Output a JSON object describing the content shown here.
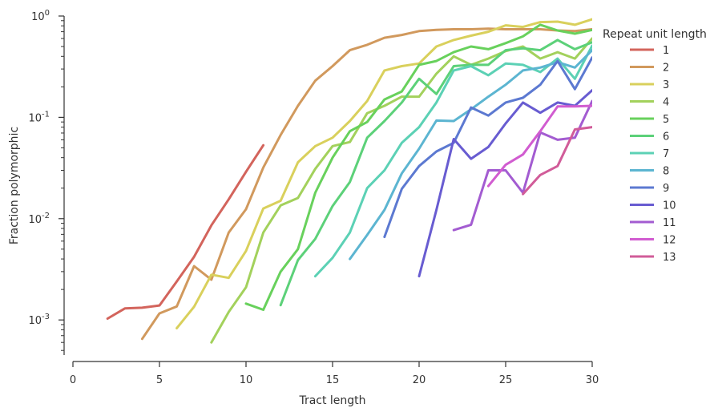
{
  "chart_data": {
    "type": "line",
    "xlabel": "Tract length",
    "ylabel": "Fraction polymorphic",
    "xlim": [
      0,
      30
    ],
    "ylim": [
      0.00045,
      1.0
    ],
    "yscale": "log",
    "x_ticks": [
      0,
      5,
      10,
      15,
      20,
      25,
      30
    ],
    "y_ticks": [
      {
        "value": 0.001,
        "base": "10",
        "exp": "-3"
      },
      {
        "value": 0.01,
        "base": "10",
        "exp": "-2"
      },
      {
        "value": 0.1,
        "base": "10",
        "exp": "-1"
      },
      {
        "value": 1,
        "base": "10",
        "exp": "0"
      }
    ],
    "legend": {
      "title": "Repeat unit length",
      "placement": "right"
    },
    "grid": false,
    "series": [
      {
        "name": "1",
        "color": "#d3645c",
        "points": [
          [
            2,
            0.00103
          ],
          [
            3,
            0.0013
          ],
          [
            4,
            0.00132
          ],
          [
            5,
            0.00139
          ],
          [
            6,
            0.0024
          ],
          [
            7,
            0.0042
          ],
          [
            8,
            0.0086
          ],
          [
            9,
            0.0155
          ],
          [
            10,
            0.029
          ],
          [
            11,
            0.053
          ]
        ]
      },
      {
        "name": "2",
        "color": "#d1995d",
        "points": [
          [
            4,
            0.00065
          ],
          [
            5,
            0.00116
          ],
          [
            6,
            0.00136
          ],
          [
            7,
            0.0034
          ],
          [
            8,
            0.0025
          ],
          [
            9,
            0.0073
          ],
          [
            10,
            0.0124
          ],
          [
            11,
            0.032
          ],
          [
            12,
            0.067
          ],
          [
            13,
            0.13
          ],
          [
            14,
            0.23
          ],
          [
            15,
            0.32
          ],
          [
            16,
            0.46
          ],
          [
            17,
            0.52
          ],
          [
            18,
            0.61
          ],
          [
            19,
            0.65
          ],
          [
            20,
            0.71
          ],
          [
            21,
            0.73
          ],
          [
            22,
            0.74
          ],
          [
            23,
            0.74
          ],
          [
            24,
            0.75
          ],
          [
            25,
            0.74
          ],
          [
            26,
            0.74
          ],
          [
            27,
            0.74
          ],
          [
            28,
            0.72
          ],
          [
            29,
            0.71
          ],
          [
            30,
            0.74
          ]
        ]
      },
      {
        "name": "3",
        "color": "#d9d05c",
        "points": [
          [
            6,
            0.00083
          ],
          [
            7,
            0.00135
          ],
          [
            8,
            0.0028
          ],
          [
            9,
            0.0026
          ],
          [
            10,
            0.0048
          ],
          [
            11,
            0.0126
          ],
          [
            12,
            0.015
          ],
          [
            13,
            0.036
          ],
          [
            14,
            0.052
          ],
          [
            15,
            0.063
          ],
          [
            16,
            0.092
          ],
          [
            17,
            0.145
          ],
          [
            18,
            0.29
          ],
          [
            19,
            0.32
          ],
          [
            20,
            0.34
          ],
          [
            21,
            0.5
          ],
          [
            22,
            0.58
          ],
          [
            23,
            0.64
          ],
          [
            24,
            0.7
          ],
          [
            25,
            0.81
          ],
          [
            26,
            0.78
          ],
          [
            27,
            0.87
          ],
          [
            28,
            0.88
          ],
          [
            29,
            0.82
          ],
          [
            30,
            0.93
          ]
        ]
      },
      {
        "name": "4",
        "color": "#a3d15c",
        "points": [
          [
            8,
            0.0006
          ],
          [
            9,
            0.0012
          ],
          [
            10,
            0.0021
          ],
          [
            11,
            0.0073
          ],
          [
            12,
            0.0135
          ],
          [
            13,
            0.016
          ],
          [
            14,
            0.031
          ],
          [
            15,
            0.052
          ],
          [
            16,
            0.057
          ],
          [
            17,
            0.11
          ],
          [
            18,
            0.13
          ],
          [
            19,
            0.16
          ],
          [
            20,
            0.16
          ],
          [
            21,
            0.27
          ],
          [
            22,
            0.4
          ],
          [
            23,
            0.33
          ],
          [
            24,
            0.38
          ],
          [
            25,
            0.45
          ],
          [
            26,
            0.5
          ],
          [
            27,
            0.38
          ],
          [
            28,
            0.44
          ],
          [
            29,
            0.38
          ],
          [
            30,
            0.6
          ]
        ]
      },
      {
        "name": "5",
        "color": "#68d15c",
        "points": [
          [
            10,
            0.00145
          ],
          [
            11,
            0.00126
          ],
          [
            12,
            0.003
          ],
          [
            13,
            0.005
          ],
          [
            14,
            0.018
          ],
          [
            15,
            0.04
          ],
          [
            16,
            0.073
          ],
          [
            17,
            0.09
          ],
          [
            18,
            0.15
          ],
          [
            19,
            0.18
          ],
          [
            20,
            0.33
          ],
          [
            21,
            0.36
          ],
          [
            22,
            0.44
          ],
          [
            23,
            0.5
          ],
          [
            24,
            0.47
          ],
          [
            25,
            0.54
          ],
          [
            26,
            0.63
          ],
          [
            27,
            0.82
          ],
          [
            28,
            0.72
          ],
          [
            29,
            0.67
          ],
          [
            30,
            0.73
          ]
        ]
      },
      {
        "name": "6",
        "color": "#5cd179",
        "points": [
          [
            12,
            0.0014
          ],
          [
            13,
            0.0039
          ],
          [
            14,
            0.0063
          ],
          [
            15,
            0.0133
          ],
          [
            16,
            0.023
          ],
          [
            17,
            0.063
          ],
          [
            18,
            0.092
          ],
          [
            19,
            0.14
          ],
          [
            20,
            0.24
          ],
          [
            21,
            0.17
          ],
          [
            22,
            0.32
          ],
          [
            23,
            0.33
          ],
          [
            24,
            0.33
          ],
          [
            25,
            0.46
          ],
          [
            26,
            0.48
          ],
          [
            27,
            0.46
          ],
          [
            28,
            0.58
          ],
          [
            29,
            0.47
          ],
          [
            30,
            0.55
          ]
        ]
      },
      {
        "name": "7",
        "color": "#5cd1b5",
        "points": [
          [
            14,
            0.0027
          ],
          [
            15,
            0.0041
          ],
          [
            16,
            0.0073
          ],
          [
            17,
            0.02
          ],
          [
            18,
            0.03
          ],
          [
            19,
            0.056
          ],
          [
            20,
            0.08
          ],
          [
            21,
            0.14
          ],
          [
            22,
            0.29
          ],
          [
            23,
            0.32
          ],
          [
            24,
            0.26
          ],
          [
            25,
            0.34
          ],
          [
            26,
            0.33
          ],
          [
            27,
            0.28
          ],
          [
            28,
            0.38
          ],
          [
            29,
            0.24
          ],
          [
            30,
            0.51
          ]
        ]
      },
      {
        "name": "8",
        "color": "#5cb5d1",
        "points": [
          [
            16,
            0.004
          ],
          [
            17,
            0.0069
          ],
          [
            18,
            0.0122
          ],
          [
            19,
            0.028
          ],
          [
            20,
            0.049
          ],
          [
            21,
            0.093
          ],
          [
            22,
            0.092
          ],
          [
            23,
            0.12
          ],
          [
            24,
            0.16
          ],
          [
            25,
            0.21
          ],
          [
            26,
            0.29
          ],
          [
            27,
            0.31
          ],
          [
            28,
            0.35
          ],
          [
            29,
            0.31
          ],
          [
            30,
            0.46
          ]
        ]
      },
      {
        "name": "9",
        "color": "#5c79d1",
        "points": [
          [
            18,
            0.0066
          ],
          [
            19,
            0.0197
          ],
          [
            20,
            0.033
          ],
          [
            21,
            0.046
          ],
          [
            22,
            0.056
          ],
          [
            23,
            0.125
          ],
          [
            24,
            0.104
          ],
          [
            25,
            0.14
          ],
          [
            26,
            0.156
          ],
          [
            27,
            0.21
          ],
          [
            28,
            0.36
          ],
          [
            29,
            0.19
          ],
          [
            30,
            0.39
          ]
        ]
      },
      {
        "name": "10",
        "color": "#685cd1",
        "points": [
          [
            20,
            0.0027
          ],
          [
            21,
            0.0122
          ],
          [
            22,
            0.061
          ],
          [
            23,
            0.039
          ],
          [
            24,
            0.051
          ],
          [
            25,
            0.087
          ],
          [
            26,
            0.14
          ],
          [
            27,
            0.111
          ],
          [
            28,
            0.14
          ],
          [
            29,
            0.13
          ],
          [
            30,
            0.185
          ]
        ]
      },
      {
        "name": "11",
        "color": "#a35cd1",
        "points": [
          [
            22,
            0.0077
          ],
          [
            23,
            0.0087
          ],
          [
            24,
            0.03
          ],
          [
            25,
            0.03
          ],
          [
            26,
            0.018
          ],
          [
            27,
            0.071
          ],
          [
            28,
            0.06
          ],
          [
            29,
            0.063
          ],
          [
            30,
            0.145
          ]
        ]
      },
      {
        "name": "12",
        "color": "#d15cd0",
        "points": [
          [
            24,
            0.021
          ],
          [
            25,
            0.034
          ],
          [
            26,
            0.043
          ],
          [
            27,
            0.073
          ],
          [
            28,
            0.128
          ],
          [
            29,
            0.128
          ],
          [
            30,
            0.13
          ]
        ]
      },
      {
        "name": "13",
        "color": "#d15c99",
        "points": [
          [
            26,
            0.0175
          ],
          [
            27,
            0.027
          ],
          [
            28,
            0.033
          ],
          [
            29,
            0.076
          ],
          [
            30,
            0.08
          ]
        ]
      }
    ]
  }
}
